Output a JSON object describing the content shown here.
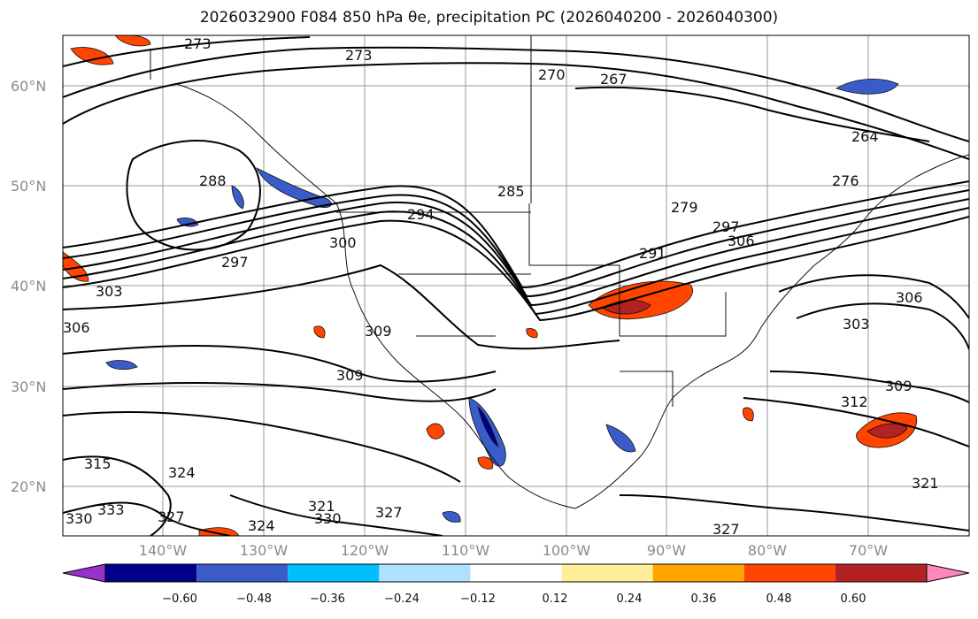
{
  "title": "2026032900 F084 850 hPa θe, precipitation PC (2026040200 - 2026040300)",
  "map": {
    "lat_labels": [
      "60°N",
      "50°N",
      "40°N",
      "30°N",
      "20°N"
    ],
    "lon_labels": [
      "140°W",
      "130°W",
      "120°W",
      "110°W",
      "100°W",
      "90°W",
      "80°W",
      "70°W"
    ],
    "contour_labels": [
      "273",
      "270",
      "267",
      "264",
      "276",
      "273",
      "288",
      "285",
      "294",
      "300",
      "297",
      "303",
      "306",
      "303",
      "306",
      "309",
      "309",
      "309",
      "312",
      "315",
      "324",
      "321",
      "330",
      "333",
      "327",
      "324",
      "327",
      "330",
      "327",
      "321",
      "279",
      "291",
      "297",
      "306"
    ]
  },
  "colorbar": {
    "ticks": [
      "−0.60",
      "−0.48",
      "−0.36",
      "−0.24",
      "−0.12",
      "0.12",
      "0.24",
      "0.36",
      "0.48",
      "0.60"
    ],
    "colors": [
      "#9932cc",
      "#00008b",
      "#3a5cc9",
      "#00bfff",
      "#b0e0ff",
      "#ffffff",
      "#ffee99",
      "#ffa500",
      "#ff4500",
      "#b22222",
      "#ff88bb"
    ]
  }
}
